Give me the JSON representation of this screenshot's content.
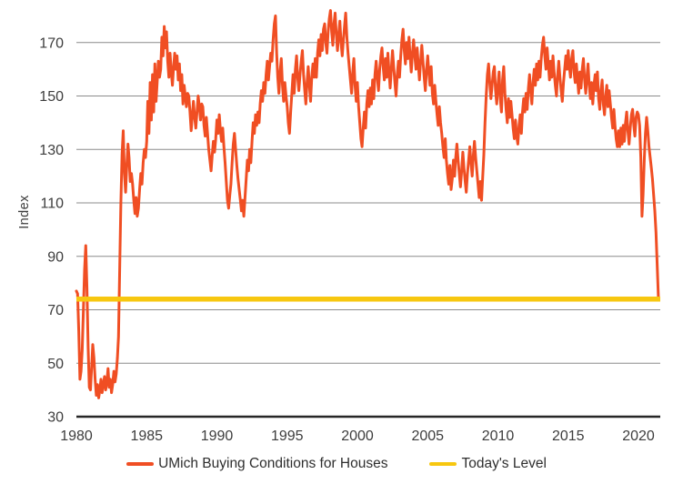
{
  "chart_data": {
    "type": "line",
    "title": "",
    "xlabel": "",
    "ylabel": "Index",
    "grid": "horizontal",
    "legend_position": "bottom",
    "colors": {
      "series_orange": "#F04E23",
      "today_yellow": "#F7C70F",
      "gridline": "#8c8c8c",
      "axis": "#262626",
      "text": "#3d3d3d"
    },
    "y_axis": {
      "min": 30,
      "max": 183,
      "ticks": [
        30,
        50,
        70,
        90,
        110,
        130,
        150,
        170
      ]
    },
    "x_axis": {
      "min": 1980,
      "max": 2021.5,
      "ticks": [
        1980,
        1985,
        1990,
        1995,
        2000,
        2005,
        2010,
        2015,
        2020
      ]
    },
    "series": [
      {
        "name": "UMich Buying Conditions for Houses",
        "color": "#F04E23",
        "kind": "monthly-line",
        "start_year": 1980,
        "start_month": 1,
        "values": [
          77,
          76,
          62,
          44,
          47,
          55,
          70,
          85,
          94,
          78,
          56,
          41,
          40,
          48,
          57,
          52,
          44,
          38,
          42,
          37,
          40,
          44,
          39,
          42,
          45,
          40,
          43,
          48,
          41,
          44,
          39,
          42,
          47,
          43,
          46,
          52,
          60,
          85,
          110,
          128,
          137,
          121,
          114,
          124,
          132,
          127,
          118,
          121,
          117,
          111,
          106,
          112,
          105,
          108,
          115,
          121,
          117,
          125,
          130,
          127,
          133,
          148,
          136,
          155,
          141,
          158,
          144,
          162,
          148,
          155,
          163,
          157,
          160,
          172,
          165,
          176,
          168,
          174,
          163,
          157,
          166,
          159,
          154,
          161,
          166,
          160,
          165,
          156,
          162,
          152,
          158,
          147,
          154,
          150,
          146,
          151,
          150,
          144,
          137,
          143,
          148,
          142,
          138,
          144,
          150,
          146,
          141,
          147,
          146,
          139,
          135,
          142,
          136,
          130,
          126,
          122,
          128,
          133,
          129,
          134,
          141,
          136,
          143,
          137,
          133,
          138,
          131,
          125,
          118,
          111,
          108,
          113,
          117,
          125,
          132,
          136,
          130,
          124,
          119,
          115,
          111,
          107,
          111,
          105,
          112,
          119,
          126,
          122,
          130,
          125,
          133,
          140,
          136,
          143,
          139,
          144,
          140,
          147,
          152,
          148,
          155,
          151,
          158,
          163,
          156,
          161,
          166,
          163,
          171,
          177,
          180,
          166,
          157,
          151,
          159,
          164,
          154,
          148,
          155,
          150,
          146,
          140,
          136,
          144,
          151,
          158,
          151,
          160,
          165,
          157,
          152,
          158,
          163,
          167,
          158,
          152,
          147,
          155,
          161,
          154,
          148,
          157,
          162,
          157,
          164,
          157,
          166,
          171,
          165,
          173,
          167,
          175,
          177,
          170,
          166,
          174,
          179,
          182,
          174,
          169,
          177,
          181,
          173,
          167,
          173,
          178,
          170,
          165,
          171,
          176,
          181,
          172,
          166,
          161,
          156,
          151,
          159,
          164,
          154,
          148,
          155,
          146,
          140,
          134,
          131,
          138,
          144,
          138,
          147,
          152,
          146,
          153,
          147,
          156,
          149,
          158,
          163,
          157,
          152,
          160,
          165,
          168,
          161,
          156,
          164,
          157,
          166,
          159,
          153,
          160,
          167,
          161,
          155,
          150,
          158,
          163,
          157,
          165,
          171,
          175,
          167,
          162,
          170,
          164,
          172,
          165,
          159,
          166,
          171,
          165,
          160,
          168,
          162,
          156,
          163,
          169,
          163,
          157,
          152,
          160,
          165,
          159,
          154,
          161,
          151,
          147,
          154,
          148,
          143,
          139,
          146,
          140,
          136,
          131,
          127,
          134,
          126,
          121,
          117,
          124,
          115,
          119,
          126,
          120,
          127,
          132,
          126,
          121,
          116,
          122,
          129,
          123,
          118,
          114,
          121,
          126,
          131,
          125,
          120,
          128,
          133,
          127,
          122,
          117,
          112,
          118,
          111,
          120,
          128,
          140,
          150,
          158,
          162,
          155,
          149,
          154,
          159,
          161,
          152,
          147,
          154,
          159,
          149,
          144,
          156,
          161,
          151,
          145,
          140,
          149,
          142,
          148,
          143,
          138,
          134,
          141,
          135,
          132,
          139,
          143,
          136,
          144,
          149,
          144,
          151,
          145,
          153,
          158,
          152,
          147,
          155,
          160,
          154,
          162,
          156,
          163,
          157,
          164,
          169,
          172,
          165,
          160,
          168,
          162,
          156,
          163,
          157,
          165,
          159,
          154,
          150,
          158,
          163,
          157,
          152,
          148,
          155,
          160,
          165,
          160,
          167,
          161,
          157,
          164,
          167,
          159,
          155,
          162,
          156,
          151,
          159,
          153,
          160,
          164,
          156,
          151,
          157,
          162,
          154,
          149,
          155,
          147,
          154,
          158,
          152,
          159,
          149,
          145,
          152,
          156,
          147,
          143,
          150,
          154,
          146,
          152,
          147,
          142,
          138,
          145,
          139,
          134,
          131,
          137,
          131,
          138,
          132,
          139,
          133,
          140,
          144,
          137,
          132,
          138,
          143,
          145,
          139,
          135,
          142,
          144,
          143,
          139,
          127,
          105,
          113,
          126,
          136,
          142,
          137,
          131,
          127,
          123,
          119,
          113,
          107,
          99,
          87,
          75
        ]
      },
      {
        "name": "Today's Level",
        "color": "#F7C70F",
        "kind": "hline",
        "value": 74
      }
    ]
  }
}
